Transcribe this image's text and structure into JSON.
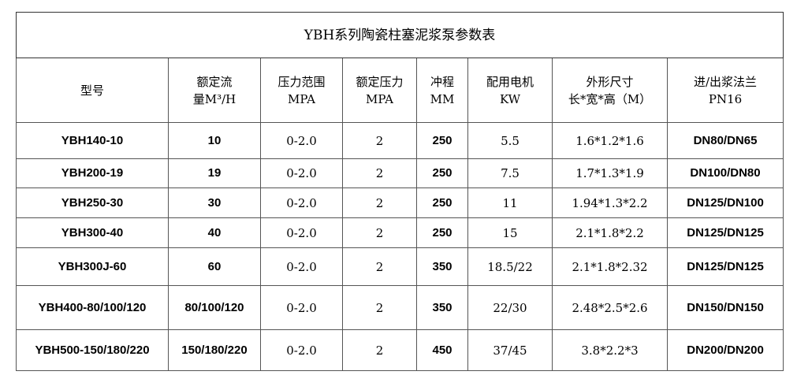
{
  "title": "YBH系列陶瓷柱塞泥浆泵参数表",
  "headers": [
    [
      "型号",
      ""
    ],
    [
      "额定流",
      "量M³/H"
    ],
    [
      "压力范围",
      "MPA"
    ],
    [
      "额定压力",
      "MPA"
    ],
    [
      "冲程",
      "MM"
    ],
    [
      "配用电机",
      "KW"
    ],
    [
      "外形尺寸",
      "长*宽*高（M）"
    ],
    [
      "进/出浆法兰",
      "PN16"
    ]
  ],
  "rows": [
    [
      "YBH140-10",
      "10",
      "0-2.0",
      "2",
      "250",
      "5.5",
      "1.6*1.2*1.6",
      "DN80/DN65"
    ],
    [
      "YBH200-19",
      "19",
      "0-2.0",
      "2",
      "250",
      "7.5",
      "1.7*1.3*1.9",
      "DN100/DN80"
    ],
    [
      "YBH250-30",
      "30",
      "0-2.0",
      "2",
      "250",
      "11",
      "1.94*1.3*2.2",
      "DN125/DN100"
    ],
    [
      "YBH300-40",
      "40",
      "0-2.0",
      "2",
      "250",
      "15",
      "2.1*1.8*2.2",
      "DN125/DN125"
    ],
    [
      "YBH300J-60",
      "60",
      "0-2.0",
      "2",
      "350",
      "18.5/22",
      "2.1*1.8*2.32",
      "DN125/DN125"
    ],
    [
      "YBH400-80/100/120",
      "80/100/120",
      "0-2.0",
      "2",
      "350",
      "22/30",
      "2.48*2.5*2.6",
      "DN150/DN150"
    ],
    [
      "YBH500-150/180/220",
      "150/180/220",
      "0-2.0",
      "2",
      "450",
      "37/45",
      "3.8*2.2*3",
      "DN200/DN200"
    ]
  ]
}
